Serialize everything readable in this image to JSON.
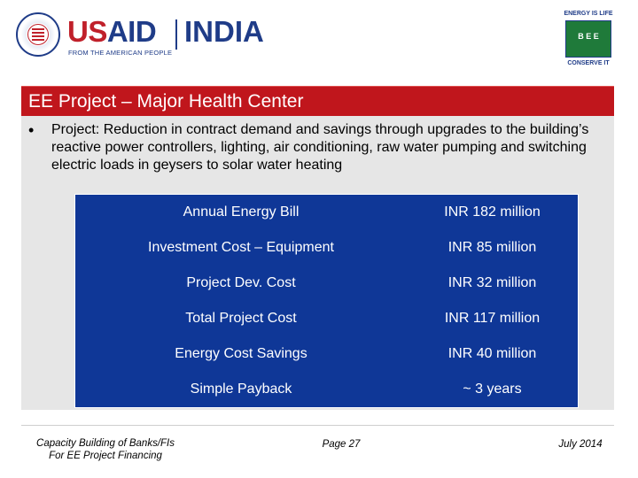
{
  "header": {
    "usaid_prefix": "US",
    "usaid_suffix": "AID",
    "usaid_tagline": "FROM THE AMERICAN PEOPLE",
    "india": "INDIA",
    "bee_top": "ENERGY IS LIFE",
    "bee_mid": "B E E",
    "bee_bottom": "CONSERVE IT"
  },
  "slide": {
    "title": "EE Project – Major Health Center",
    "bullet": "Project: Reduction in contract demand and savings through upgrades to the building’s reactive power controllers, lighting,  air conditioning, raw water pumping and switching electric loads in geysers to solar water heating"
  },
  "table": {
    "rows": [
      {
        "label": "Annual Energy Bill",
        "value": "INR 182 million"
      },
      {
        "label": "Investment Cost – Equipment",
        "value": "INR 85 million"
      },
      {
        "label": "Project Dev. Cost",
        "value": "INR 32 million"
      },
      {
        "label": "Total Project Cost",
        "value": "INR 117 million"
      },
      {
        "label": "Energy Cost Savings",
        "value": "INR 40 million"
      },
      {
        "label": "Simple Payback",
        "value": "~ 3 years"
      }
    ]
  },
  "footer": {
    "left_line1": "Capacity Building of Banks/FIs",
    "left_line2": "For EE Project Financing",
    "page": "Page 27",
    "date": "July 2014"
  },
  "colors": {
    "title_bar": "#c0161c",
    "table_bg": "#0f3797",
    "panel_bg": "#e6e6e6",
    "brand_blue": "#1f3c88"
  }
}
